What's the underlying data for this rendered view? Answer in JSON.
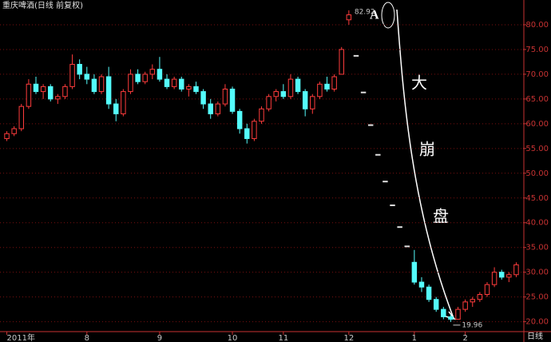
{
  "chart_data": {
    "type": "candlestick",
    "title": "重庆啤酒(日线 前复权)",
    "period_label": "日线",
    "annotations": [
      "A",
      "大",
      "崩",
      "盘"
    ],
    "ylim": [
      18,
      85
    ],
    "yticks": [
      {
        "value": 20,
        "label": "20.00"
      },
      {
        "value": 25,
        "label": "25.00"
      },
      {
        "value": 30,
        "label": "30.00"
      },
      {
        "value": 35,
        "label": "35.00"
      },
      {
        "value": 40,
        "label": "40.00"
      },
      {
        "value": 45,
        "label": "45.00"
      },
      {
        "value": 50,
        "label": "50.00"
      },
      {
        "value": 55,
        "label": "55.00"
      },
      {
        "value": 60,
        "label": "60.00"
      },
      {
        "value": 65,
        "label": "65.00"
      },
      {
        "value": 70,
        "label": "70.00"
      },
      {
        "value": 75,
        "label": "75.00"
      },
      {
        "value": 80,
        "label": "80.00"
      }
    ],
    "grid": true,
    "up_color": "#ff3c3c",
    "down_color": "#54fcfc",
    "flat_color": "#e0e0e0",
    "categories": [
      "2011年",
      null,
      null,
      null,
      null,
      null,
      null,
      null,
      null,
      null,
      null,
      "8",
      null,
      null,
      null,
      null,
      null,
      null,
      null,
      null,
      null,
      "9",
      null,
      null,
      null,
      null,
      null,
      null,
      null,
      null,
      null,
      "10",
      null,
      null,
      null,
      null,
      null,
      null,
      "11",
      null,
      null,
      null,
      null,
      null,
      null,
      null,
      null,
      "12",
      null,
      null,
      null,
      null,
      null,
      null,
      null,
      null,
      "1",
      null,
      null,
      null,
      null,
      null,
      null,
      "2",
      null,
      null,
      null,
      null,
      null,
      null,
      null
    ],
    "open": [
      57,
      58,
      59,
      63.5,
      68,
      66.5,
      67.5,
      65,
      65.5,
      67.5,
      72,
      70,
      69,
      66.5,
      69.5,
      64,
      62,
      66.5,
      70,
      68.5,
      70,
      71,
      69,
      67.5,
      69,
      67,
      67.5,
      66.5,
      64,
      62,
      64,
      67,
      62.5,
      59,
      57,
      60.5,
      63,
      65.5,
      66.5,
      65.5,
      69,
      66.5,
      63,
      65.5,
      68,
      67,
      70,
      81,
      73.8,
      66.4,
      59.8,
      53.8,
      48.4,
      43.6,
      39.2,
      35.3,
      32,
      28,
      27,
      24.5,
      22.5,
      21,
      20.5,
      22.5,
      24,
      24.5,
      25.5,
      27.5,
      30,
      29,
      29.5
    ],
    "high": [
      58.5,
      59.5,
      64,
      69,
      69.5,
      68,
      68,
      66,
      68,
      74,
      73,
      71.5,
      70,
      70,
      71.5,
      65,
      67,
      71,
      71,
      70.5,
      72,
      73.5,
      70,
      69.5,
      69.5,
      68,
      68.5,
      67,
      65,
      64.5,
      68,
      67.5,
      63,
      60,
      61,
      63.5,
      66,
      67,
      68,
      70,
      69.5,
      67,
      66,
      68.5,
      69.5,
      70,
      75.5,
      82.92,
      73.8,
      66.4,
      59.8,
      53.8,
      48.4,
      43.6,
      39.2,
      35.3,
      34.5,
      29,
      27.5,
      25,
      23,
      21.5,
      23,
      24.5,
      25,
      26,
      28,
      31,
      30.5,
      30,
      32
    ],
    "low": [
      56.5,
      57.5,
      58.5,
      63,
      66,
      65,
      64.5,
      64,
      65,
      67,
      69,
      68,
      66,
      66,
      63,
      60.5,
      61.5,
      66,
      68,
      68,
      69,
      68.5,
      67,
      67,
      66.5,
      65.5,
      66,
      63,
      61,
      61.5,
      63.5,
      62,
      58,
      56,
      56.5,
      60,
      62.5,
      64.5,
      65,
      65,
      66,
      61.5,
      62,
      65,
      66.5,
      66.5,
      70,
      80,
      73.8,
      66.4,
      59.8,
      53.8,
      48.4,
      43.6,
      39.2,
      35.3,
      27.5,
      26,
      24,
      22,
      20.5,
      19.96,
      20.5,
      22,
      23,
      24,
      25,
      27,
      28.5,
      28,
      29
    ],
    "close": [
      58,
      59,
      63.5,
      68,
      66.5,
      67.5,
      65,
      65.5,
      67.5,
      72,
      70,
      69,
      66.5,
      69.5,
      64,
      62,
      66.5,
      70,
      68.5,
      70,
      71,
      69,
      67.5,
      69,
      67,
      67.5,
      66.5,
      64,
      62,
      64,
      67,
      62.5,
      59,
      57,
      60.5,
      63,
      65.5,
      66.5,
      65.5,
      69,
      66.5,
      63,
      65.5,
      68,
      67,
      69.5,
      75,
      82,
      73.8,
      66.4,
      59.8,
      53.8,
      48.4,
      43.6,
      39.2,
      35.3,
      28,
      27,
      24.5,
      22.5,
      21,
      20.5,
      22.5,
      24,
      24.5,
      25.5,
      27.5,
      30,
      29,
      29.5,
      31.5
    ]
  }
}
